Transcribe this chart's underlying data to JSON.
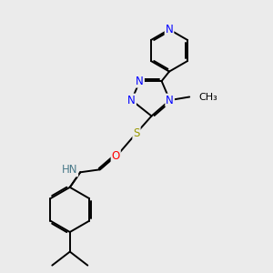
{
  "bg_color": "#ebebeb",
  "bond_color": "#000000",
  "atom_colors": {
    "N": "#0000ff",
    "O": "#ff0000",
    "S": "#999900",
    "H": "#4a7a8a",
    "C": "#000000"
  },
  "bond_width": 1.4,
  "font_size_atom": 8.5,
  "fig_size": [
    3.0,
    3.0
  ],
  "dpi": 100,
  "xlim": [
    0,
    10
  ],
  "ylim": [
    0,
    10
  ]
}
